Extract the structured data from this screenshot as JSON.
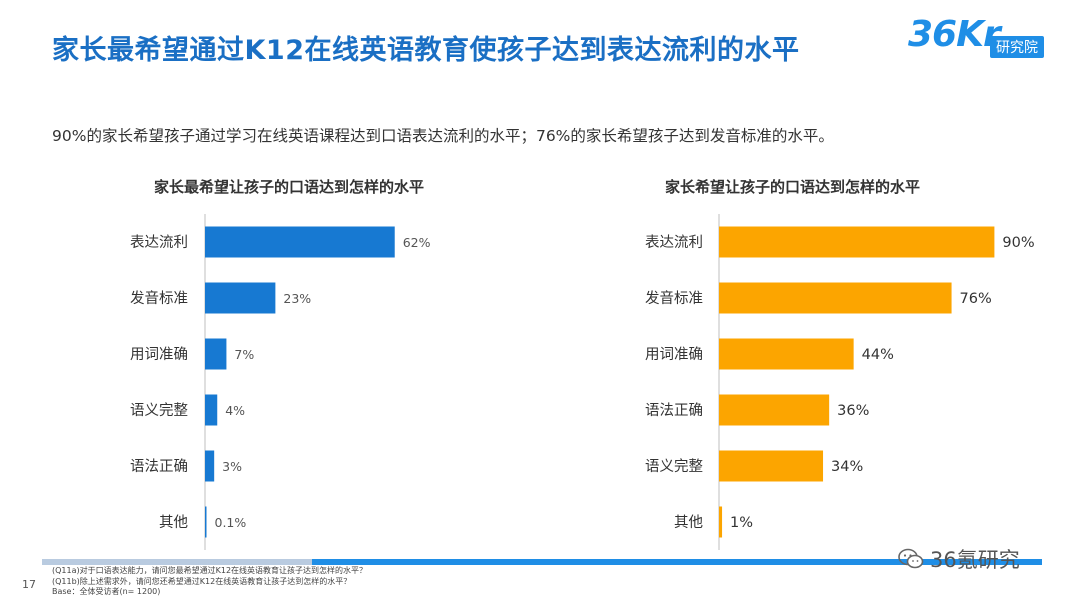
{
  "title": "家长最希望通过K12在线英语教育使孩子达到表达流利的水平",
  "logo": {
    "text": "36Kr",
    "tag": "研究院"
  },
  "subtitle": "90%的家长希望孩子通过学习在线英语课程达到口语表达流利的水平；76%的家长希望孩子达到发音标准的水平。",
  "colors": {
    "title": "#1a6fc4",
    "left_bar": "#1779d2",
    "right_bar": "#fca500"
  },
  "chart_data": [
    {
      "type": "bar",
      "orientation": "horizontal",
      "title": "家长最希望让孩子的口语达到怎样的水平",
      "categories": [
        "表达流利",
        "发音标准",
        "用词准确",
        "语义完整",
        "语法正确",
        "其他"
      ],
      "values": [
        62,
        23,
        7,
        4,
        3,
        0.1
      ],
      "value_labels": [
        "62%",
        "23%",
        "7%",
        "4%",
        "3%",
        "0.1%"
      ],
      "unit": "%",
      "color": "#1779d2",
      "xlim": [
        0,
        100
      ]
    },
    {
      "type": "bar",
      "orientation": "horizontal",
      "title": "家长希望让孩子的口语达到怎样的水平",
      "categories": [
        "表达流利",
        "发音标准",
        "用词准确",
        "语法正确",
        "语义完整",
        "其他"
      ],
      "values": [
        90,
        76,
        44,
        36,
        34,
        1
      ],
      "value_labels": [
        "90%",
        "76%",
        "44%",
        "36%",
        "34%",
        "1%"
      ],
      "unit": "%",
      "color": "#fca500",
      "xlim": [
        0,
        100
      ]
    }
  ],
  "footer": {
    "page_number": "17",
    "notes": [
      "(Q11a)对于口语表达能力，请问您最希望通过K12在线英语教育让孩子达到怎样的水平？",
      "(Q11b)除上述需求外，请问您还希望通过K12在线英语教育让孩子达到怎样的水平？",
      "Base：全体受访者(n= 1200)"
    ],
    "watermark": "36氪研究"
  }
}
